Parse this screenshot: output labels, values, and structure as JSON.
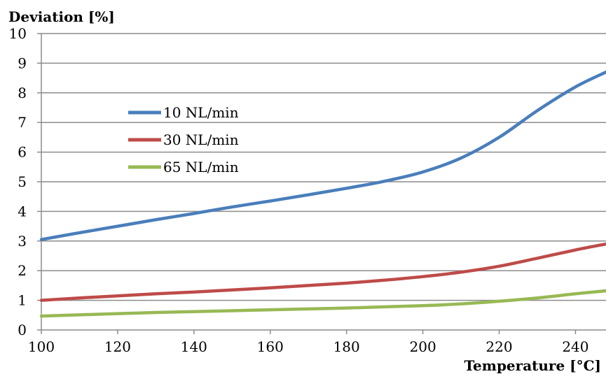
{
  "chart_data": {
    "type": "line",
    "title": "",
    "ylabel": "Deviation [%]",
    "xlabel": "Temperature [°C]",
    "xlim": [
      100,
      248
    ],
    "ylim": [
      0,
      10
    ],
    "xticks": [
      100,
      120,
      140,
      160,
      180,
      200,
      220,
      240
    ],
    "yticks": [
      0,
      1,
      2,
      3,
      4,
      5,
      6,
      7,
      8,
      9,
      10
    ],
    "grid": "horizontal",
    "legend_position": "upper-left",
    "x": [
      100,
      110,
      120,
      130,
      140,
      150,
      160,
      170,
      180,
      190,
      200,
      210,
      220,
      230,
      240,
      248
    ],
    "series": [
      {
        "name": "10 NL/min",
        "color": "#4a7ebb",
        "values": [
          3.05,
          3.28,
          3.5,
          3.72,
          3.93,
          4.15,
          4.35,
          4.56,
          4.78,
          5.02,
          5.33,
          5.8,
          6.5,
          7.4,
          8.2,
          8.7
        ]
      },
      {
        "name": "30 NL/min",
        "color": "#be4b48",
        "values": [
          1.0,
          1.08,
          1.15,
          1.22,
          1.28,
          1.35,
          1.42,
          1.5,
          1.58,
          1.68,
          1.8,
          1.95,
          2.15,
          2.42,
          2.7,
          2.9
        ]
      },
      {
        "name": "65 NL/min",
        "color": "#98b954",
        "values": [
          0.47,
          0.51,
          0.55,
          0.59,
          0.62,
          0.65,
          0.68,
          0.71,
          0.74,
          0.78,
          0.82,
          0.88,
          0.97,
          1.08,
          1.22,
          1.32
        ]
      }
    ]
  }
}
